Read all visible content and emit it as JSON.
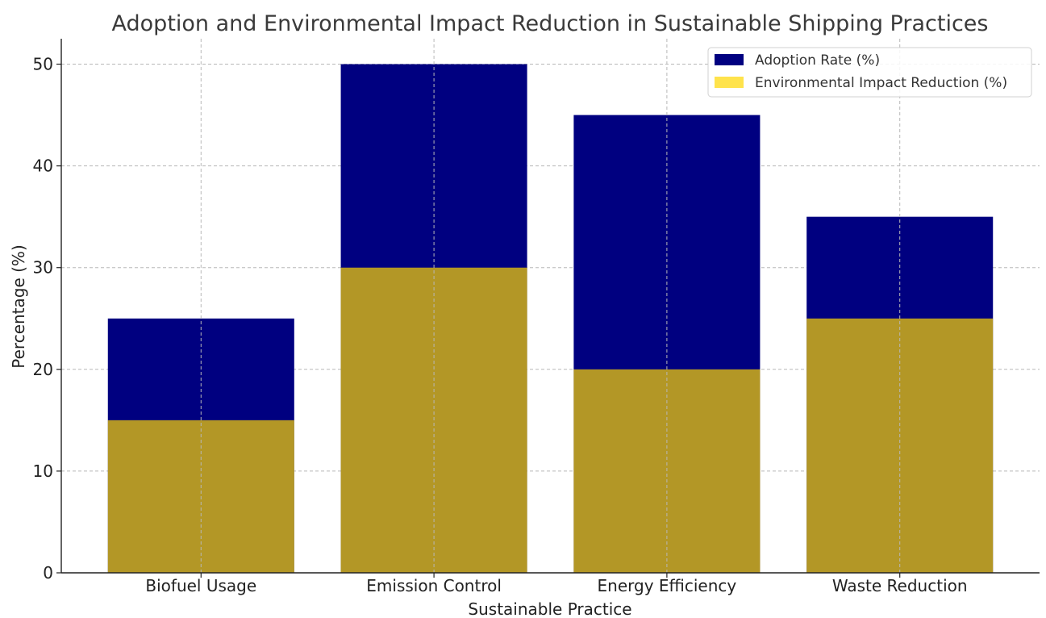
{
  "chart_data": {
    "type": "bar",
    "title": "Adoption and Environmental Impact Reduction in Sustainable Shipping Practices",
    "xlabel": "Sustainable Practice",
    "ylabel": "Percentage (%)",
    "categories": [
      "Biofuel Usage",
      "Emission Control",
      "Energy Efficiency",
      "Waste Reduction"
    ],
    "series": [
      {
        "name": "Adoption Rate (%)",
        "values": [
          25,
          50,
          45,
          35
        ],
        "color": "#000080",
        "opacity": 1.0
      },
      {
        "name": "Environmental Impact Reduction (%)",
        "values": [
          15,
          30,
          20,
          25
        ],
        "color": "#FFD700",
        "opacity": 0.7,
        "rendered_color": "#AE962C"
      }
    ],
    "ylim": [
      0,
      52.5
    ],
    "yticks": [
      0,
      10,
      20,
      30,
      40,
      50
    ],
    "grid": true,
    "legend_position": "top-right",
    "overlay": true
  }
}
